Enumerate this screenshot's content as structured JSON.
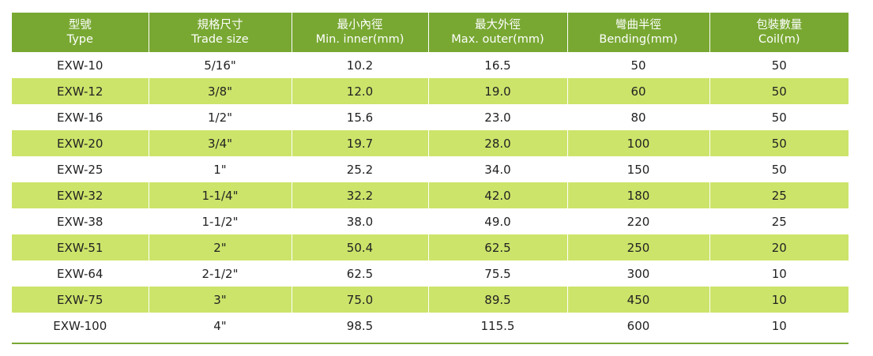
{
  "header": {
    "columns": [
      {
        "zh": "型號",
        "en": "Type"
      },
      {
        "zh": "規格尺寸",
        "en": "Trade size"
      },
      {
        "zh": "最小內徑",
        "en": "Min. inner(mm)"
      },
      {
        "zh": "最大外徑",
        "en": "Max. outer(mm)"
      },
      {
        "zh": "彎曲半徑",
        "en": "Bending(mm)"
      },
      {
        "zh": "包裝數量",
        "en": "Coil(m)"
      }
    ]
  },
  "rows": [
    [
      "EXW-10",
      "5/16\"",
      "10.2",
      "16.5",
      "50",
      "50"
    ],
    [
      "EXW-12",
      "3/8\"",
      "12.0",
      "19.0",
      "60",
      "50"
    ],
    [
      "EXW-16",
      "1/2\"",
      "15.6",
      "23.0",
      "80",
      "50"
    ],
    [
      "EXW-20",
      "3/4\"",
      "19.7",
      "28.0",
      "100",
      "50"
    ],
    [
      "EXW-25",
      "1\"",
      "25.2",
      "34.0",
      "150",
      "50"
    ],
    [
      "EXW-32",
      "1-1/4\"",
      "32.2",
      "42.0",
      "180",
      "25"
    ],
    [
      "EXW-38",
      "1-1/2\"",
      "38.0",
      "49.0",
      "220",
      "25"
    ],
    [
      "EXW-51",
      "2\"",
      "50.4",
      "62.5",
      "250",
      "20"
    ],
    [
      "EXW-64",
      "2-1/2\"",
      "62.5",
      "75.5",
      "300",
      "10"
    ],
    [
      "EXW-75",
      "3\"",
      "75.0",
      "89.5",
      "450",
      "10"
    ],
    [
      "EXW-100",
      "4\"",
      "98.5",
      "115.5",
      "600",
      "10"
    ]
  ],
  "colors": {
    "header_bg": "#78a832",
    "stripe_bg": "#cce46a",
    "row_bg": "#ffffff",
    "text": "#222222"
  }
}
